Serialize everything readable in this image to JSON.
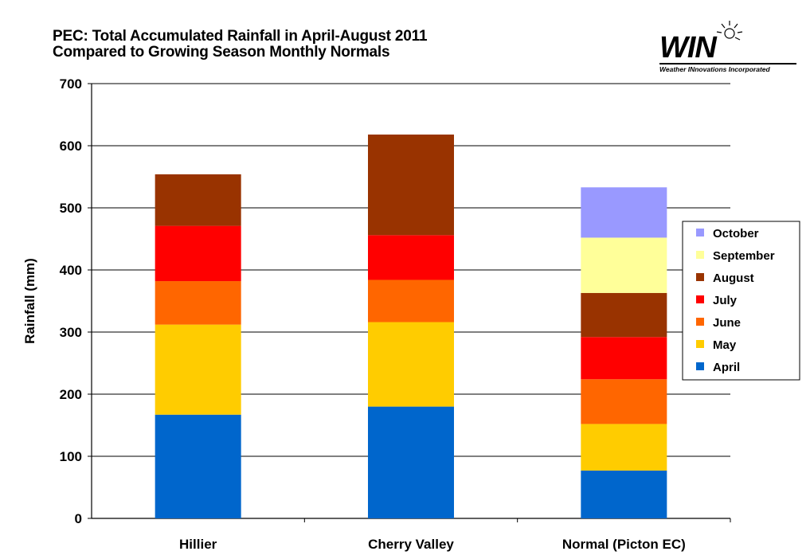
{
  "title_line1": "PEC: Total Accumulated Rainfall in April-August 2011",
  "title_line2": "Compared to Growing Season Monthly Normals",
  "logo": {
    "text": "WIN",
    "tagline": "Weather INnovations Incorporated"
  },
  "chart_data": {
    "type": "bar",
    "stacked": true,
    "categories": [
      "Hillier",
      "Cherry Valley",
      "Normal (Picton EC)"
    ],
    "ylabel": "Rainfall (mm)",
    "ylim": [
      0,
      700
    ],
    "yticks": [
      0,
      100,
      200,
      300,
      400,
      500,
      600,
      700
    ],
    "grid": true,
    "legend_position": "right",
    "series": [
      {
        "name": "April",
        "color": "#0066cc",
        "values": [
          167,
          180,
          77
        ]
      },
      {
        "name": "May",
        "color": "#ffcc00",
        "values": [
          145,
          136,
          75
        ]
      },
      {
        "name": "June",
        "color": "#ff6600",
        "values": [
          70,
          68,
          72
        ]
      },
      {
        "name": "July",
        "color": "#ff0000",
        "values": [
          89,
          72,
          68
        ]
      },
      {
        "name": "August",
        "color": "#993300",
        "values": [
          83,
          162,
          71
        ]
      },
      {
        "name": "September",
        "color": "#ffff99",
        "values": [
          0,
          0,
          89
        ]
      },
      {
        "name": "October",
        "color": "#9999ff",
        "values": [
          0,
          0,
          81
        ]
      }
    ]
  }
}
